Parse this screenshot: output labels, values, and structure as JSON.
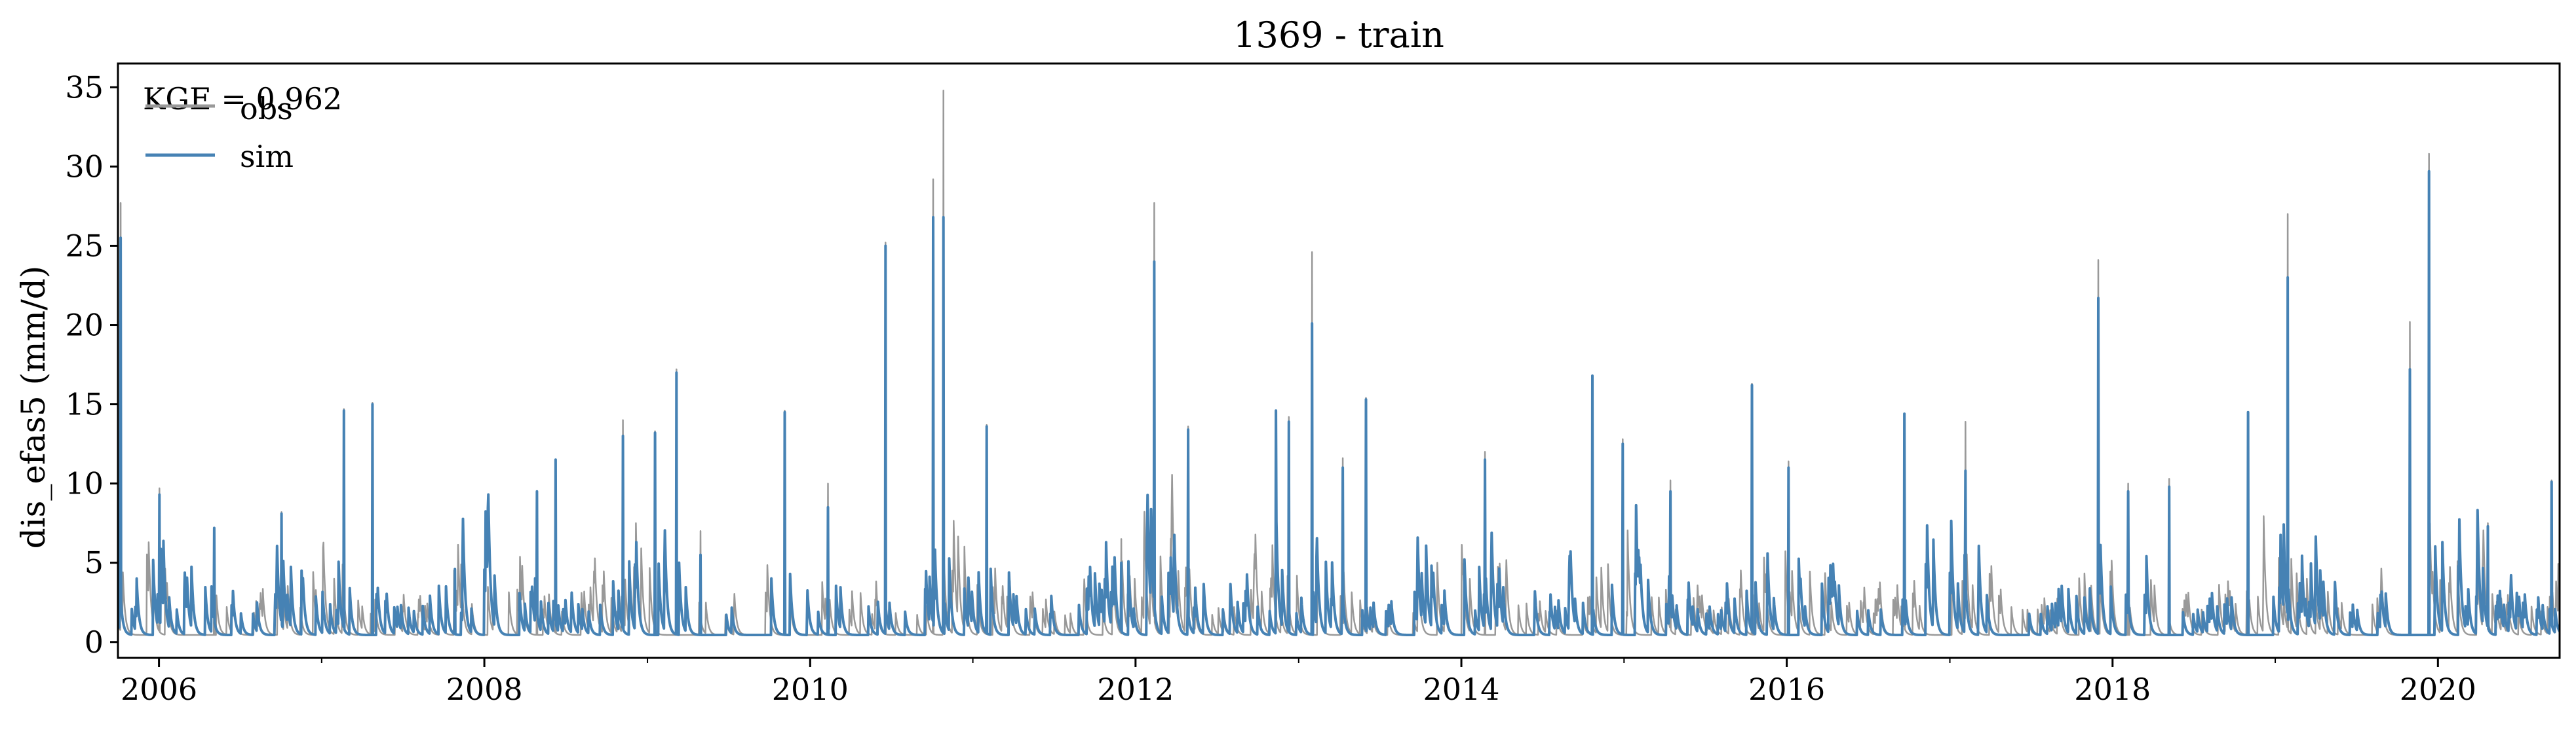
{
  "chart_data": {
    "type": "line",
    "title": "1369 - train",
    "xlabel": "",
    "ylabel": "dis_efas5 (mm/d)",
    "x_range": [
      "2005-10-01",
      "2020-09-30"
    ],
    "ylim": [
      -1,
      36.5
    ],
    "y_ticks": [
      0,
      5,
      10,
      15,
      20,
      25,
      30,
      35
    ],
    "x_ticks": [
      "2006",
      "2008",
      "2010",
      "2012",
      "2014",
      "2016",
      "2018",
      "2020"
    ],
    "minor_x_ticks": [
      "2007",
      "2009",
      "2011",
      "2013",
      "2015",
      "2017",
      "2019"
    ],
    "grid": false,
    "legend": {
      "placement": "top-left",
      "entries": [
        "obs",
        "sim"
      ]
    },
    "annotation": "KGE = 0.962",
    "series": [
      {
        "name": "obs",
        "color": "#999999",
        "peaks": [
          [
            "2005-10-07",
            27.7
          ],
          [
            "2006-01-02",
            9.7
          ],
          [
            "2006-05-05",
            7.1
          ],
          [
            "2006-10-03",
            8.2
          ],
          [
            "2007-02-20",
            14.7
          ],
          [
            "2007-04-25",
            15.1
          ],
          [
            "2007-10-27",
            4.6
          ],
          [
            "2008-04-28",
            9.5
          ],
          [
            "2008-06-09",
            11.5
          ],
          [
            "2008-11-07",
            14.0
          ],
          [
            "2009-01-18",
            13.3
          ],
          [
            "2009-03-07",
            17.2
          ],
          [
            "2009-04-30",
            7.0
          ],
          [
            "2009-11-05",
            14.6
          ],
          [
            "2010-02-10",
            10.0
          ],
          [
            "2010-06-19",
            25.2
          ],
          [
            "2010-10-04",
            29.2
          ],
          [
            "2010-10-27",
            34.8
          ],
          [
            "2011-02-01",
            13.7
          ],
          [
            "2011-11-30",
            6.5
          ],
          [
            "2012-02-12",
            27.7
          ],
          [
            "2012-04-28",
            13.6
          ],
          [
            "2012-11-11",
            14.6
          ],
          [
            "2012-12-10",
            14.2
          ],
          [
            "2013-01-31",
            24.6
          ],
          [
            "2013-04-10",
            11.6
          ],
          [
            "2013-06-01",
            15.4
          ],
          [
            "2014-02-23",
            12.0
          ],
          [
            "2014-10-22",
            16.8
          ],
          [
            "2014-12-29",
            12.8
          ],
          [
            "2015-04-15",
            10.2
          ],
          [
            "2015-10-15",
            16.3
          ],
          [
            "2016-01-05",
            11.4
          ],
          [
            "2016-09-21",
            14.4
          ],
          [
            "2017-02-05",
            13.9
          ],
          [
            "2017-11-30",
            24.1
          ],
          [
            "2018-02-05",
            10.0
          ],
          [
            "2018-05-08",
            10.3
          ],
          [
            "2018-11-01",
            14.5
          ],
          [
            "2019-01-29",
            27.0
          ],
          [
            "2019-10-30",
            20.2
          ],
          [
            "2019-12-12",
            30.8
          ],
          [
            "2020-04-22",
            7.5
          ],
          [
            "2020-09-12",
            10.2
          ]
        ]
      },
      {
        "name": "sim",
        "color": "#4682b4",
        "peaks": [
          [
            "2005-10-07",
            25.5
          ],
          [
            "2006-01-02",
            9.3
          ],
          [
            "2006-05-05",
            7.2
          ],
          [
            "2006-10-03",
            8.1
          ],
          [
            "2007-02-20",
            14.6
          ],
          [
            "2007-04-25",
            15.0
          ],
          [
            "2007-10-27",
            4.6
          ],
          [
            "2008-04-28",
            9.5
          ],
          [
            "2008-06-09",
            11.5
          ],
          [
            "2008-11-07",
            13.0
          ],
          [
            "2009-01-18",
            13.2
          ],
          [
            "2009-03-07",
            17.0
          ],
          [
            "2009-04-30",
            5.5
          ],
          [
            "2009-11-05",
            14.5
          ],
          [
            "2010-02-10",
            8.5
          ],
          [
            "2010-06-19",
            25.0
          ],
          [
            "2010-10-04",
            26.8
          ],
          [
            "2010-10-27",
            26.8
          ],
          [
            "2011-02-01",
            13.6
          ],
          [
            "2011-11-30",
            5.0
          ],
          [
            "2012-02-12",
            24.0
          ],
          [
            "2012-04-28",
            13.4
          ],
          [
            "2012-11-11",
            14.6
          ],
          [
            "2012-12-10",
            13.9
          ],
          [
            "2013-01-31",
            20.1
          ],
          [
            "2013-04-10",
            11.0
          ],
          [
            "2013-06-01",
            15.3
          ],
          [
            "2014-02-23",
            11.5
          ],
          [
            "2014-10-22",
            16.8
          ],
          [
            "2014-12-29",
            12.5
          ],
          [
            "2015-04-15",
            9.5
          ],
          [
            "2015-10-15",
            16.2
          ],
          [
            "2016-01-05",
            11.0
          ],
          [
            "2016-09-21",
            14.4
          ],
          [
            "2017-02-05",
            10.8
          ],
          [
            "2017-11-30",
            21.7
          ],
          [
            "2018-02-05",
            9.5
          ],
          [
            "2018-05-08",
            9.8
          ],
          [
            "2018-11-01",
            14.5
          ],
          [
            "2019-01-29",
            23.0
          ],
          [
            "2019-10-30",
            17.2
          ],
          [
            "2019-12-12",
            29.7
          ],
          [
            "2020-04-22",
            7.3
          ],
          [
            "2020-09-12",
            10.1
          ]
        ]
      }
    ]
  }
}
